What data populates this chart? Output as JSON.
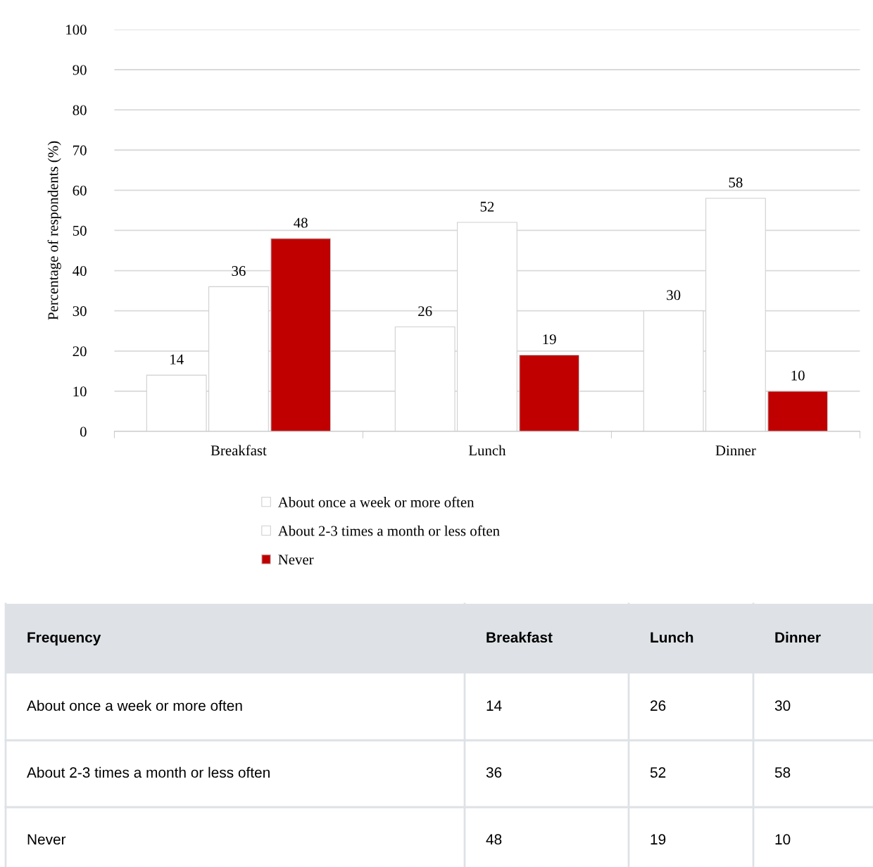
{
  "chart_data": [
    {
      "type": "bar",
      "ylabel": "Percentage of respondents (%)",
      "categories": [
        "Breakfast",
        "Lunch",
        "Dinner"
      ],
      "series": [
        {
          "name": "About once a week or more often",
          "color": "#ffffff",
          "values": [
            14,
            26,
            30
          ]
        },
        {
          "name": "About 2-3 times a month or less often",
          "color": "#ffffff",
          "values": [
            36,
            52,
            58
          ]
        },
        {
          "name": "Never",
          "color": "#c00000",
          "values": [
            48,
            19,
            10
          ]
        }
      ],
      "ylim": [
        0,
        100
      ],
      "yticks": [
        0,
        10,
        20,
        30,
        40,
        50,
        60,
        70,
        80,
        90,
        100
      ],
      "grid": "y",
      "legend": "bottom",
      "data_labels": true
    },
    {
      "type": "other",
      "categories": [
        "Frequency",
        "Breakfast",
        "Lunch",
        "Dinner"
      ],
      "y_categories": [
        "About once a week or more often",
        "About 2-3 times a month or less often",
        "Never"
      ],
      "cell_labels": [
        [
          "14",
          "26",
          "30"
        ],
        [
          "36",
          "52",
          "58"
        ],
        [
          "48",
          "19",
          "10"
        ]
      ]
    }
  ]
}
